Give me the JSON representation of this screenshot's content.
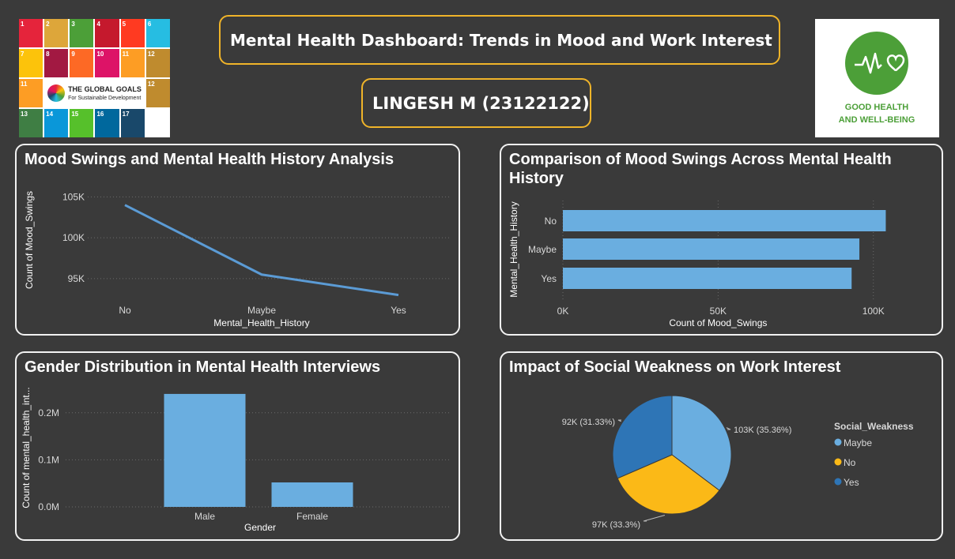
{
  "header": {
    "title": "Mental Health Dashboard: Trends in Mood and Work Interest",
    "author": "LINGESH M (23122122)"
  },
  "logos": {
    "sdg_wheel_text": "THE GLOBAL GOALS",
    "sdg_wheel_sub": "For Sustainable Development",
    "sdg_tiles": [
      {
        "n": "1",
        "color": "#e5243b"
      },
      {
        "n": "2",
        "color": "#dda63a"
      },
      {
        "n": "3",
        "color": "#4c9f38"
      },
      {
        "n": "4",
        "color": "#c5192d"
      },
      {
        "n": "5",
        "color": "#ff3a21"
      },
      {
        "n": "6",
        "color": "#26bde2"
      },
      {
        "n": "7",
        "color": "#fcc30b"
      },
      {
        "n": "8",
        "color": "#a21942"
      },
      {
        "n": "9",
        "color": "#fd6925"
      },
      {
        "n": "10",
        "color": "#dd1367"
      },
      {
        "n": "11",
        "color": "#fd9d24"
      },
      {
        "n": "12",
        "color": "#bf8b2e"
      },
      {
        "n": "13",
        "color": "#3f7e44"
      },
      {
        "n": "14",
        "color": "#0a97d9"
      },
      {
        "n": "15",
        "color": "#56c02b"
      },
      {
        "n": "16",
        "color": "#00689d"
      },
      {
        "n": "17",
        "color": "#19486a"
      }
    ],
    "good_health_line1": "GOOD HEALTH",
    "good_health_line2": "AND WELL-BEING",
    "good_health_color": "#4c9f38"
  },
  "chart_data": [
    {
      "type": "line",
      "title": "Mood Swings and Mental Health History Analysis",
      "xlabel": "Mental_Health_History",
      "ylabel": "Count of Mood_Swings",
      "categories": [
        "No",
        "Maybe",
        "Yes"
      ],
      "values": [
        104000,
        95500,
        93000
      ],
      "ylim": [
        92000,
        106000
      ],
      "yticks": [
        "95K",
        "100K",
        "105K"
      ],
      "ytick_values": [
        95000,
        100000,
        105000
      ],
      "color": "#5b9bd5"
    },
    {
      "type": "bar",
      "orientation": "horizontal",
      "title": "Comparison of Mood Swings Across Mental Health History",
      "xlabel": "Count of Mood_Swings",
      "ylabel": "Mental_Health_History",
      "categories": [
        "No",
        "Maybe",
        "Yes"
      ],
      "values": [
        104000,
        95500,
        93000
      ],
      "xlim": [
        0,
        110000
      ],
      "xticks": [
        "0K",
        "50K",
        "100K"
      ],
      "xtick_values": [
        0,
        50000,
        100000
      ],
      "color": "#6aaee0"
    },
    {
      "type": "bar",
      "title": "Gender Distribution in Mental Health Interviews",
      "xlabel": "Gender",
      "ylabel": "Count of mental_health_int...",
      "categories": [
        "Male",
        "Female"
      ],
      "values": [
        240000,
        52000
      ],
      "ylim": [
        0,
        260000
      ],
      "yticks": [
        "0.0M",
        "0.1M",
        "0.2M"
      ],
      "ytick_values": [
        0,
        100000,
        200000
      ],
      "color": "#6aaee0"
    },
    {
      "type": "pie",
      "title": "Impact of Social Weakness on Work Interest",
      "legend_title": "Social_Weakness",
      "legend_position": "right",
      "slices": [
        {
          "name": "Maybe",
          "value": 103000,
          "label": "103K (35.36%)",
          "color": "#6aaee0"
        },
        {
          "name": "No",
          "value": 97000,
          "label": "97K (33.3%)",
          "color": "#fbb917"
        },
        {
          "name": "Yes",
          "value": 92000,
          "label": "92K (31.33%)",
          "color": "#2e75b6"
        }
      ]
    }
  ]
}
